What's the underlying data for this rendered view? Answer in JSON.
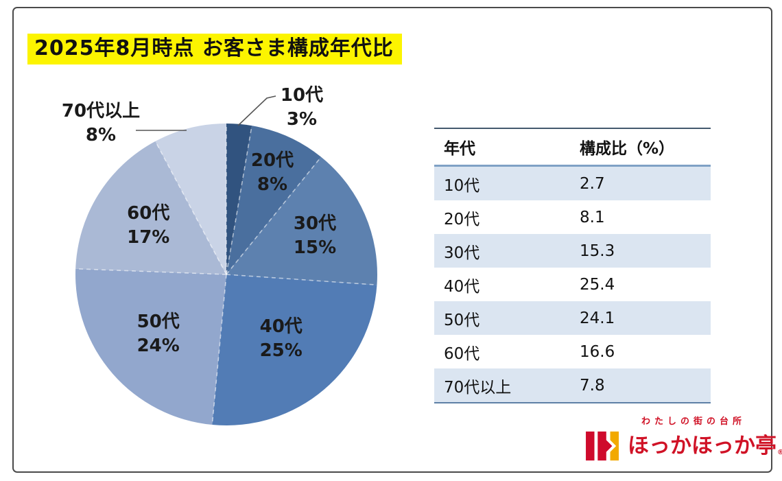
{
  "page": {
    "title": "2025年8月時点 お客さま構成年代比",
    "title_highlight_color": "#fcf400",
    "frame_border_color": "#4a4a4a"
  },
  "chart_data": {
    "type": "pie",
    "title": "2025年8月時点 お客さま構成年代比",
    "unit": "%",
    "slices": [
      {
        "label": "10代",
        "value": 2.7,
        "display_pct": "3%",
        "color": "#31537f",
        "label_placement": "outside"
      },
      {
        "label": "20代",
        "value": 8.1,
        "display_pct": "8%",
        "color": "#4a6f9e",
        "label_placement": "inside"
      },
      {
        "label": "30代",
        "value": 15.3,
        "display_pct": "15%",
        "color": "#5d81af",
        "label_placement": "inside"
      },
      {
        "label": "40代",
        "value": 25.4,
        "display_pct": "25%",
        "color": "#527cb5",
        "label_placement": "inside"
      },
      {
        "label": "50代",
        "value": 24.1,
        "display_pct": "24%",
        "color": "#92a7cd",
        "label_placement": "inside"
      },
      {
        "label": "60代",
        "value": 16.6,
        "display_pct": "17%",
        "color": "#aab9d5",
        "label_placement": "inside"
      },
      {
        "label": "70代以上",
        "value": 7.8,
        "display_pct": "8%",
        "color": "#c9d3e6",
        "label_placement": "outside"
      }
    ],
    "layout": {
      "start_angle_deg": -90,
      "direction": "clockwise",
      "legend": "none",
      "separator_style": "dashed-white"
    }
  },
  "table": {
    "columns": [
      "年代",
      "構成比（%）"
    ],
    "rows": [
      [
        "10代",
        "2.7"
      ],
      [
        "20代",
        "8.1"
      ],
      [
        "30代",
        "15.3"
      ],
      [
        "40代",
        "25.4"
      ],
      [
        "50代",
        "24.1"
      ],
      [
        "60代",
        "16.6"
      ],
      [
        "70代以上",
        "7.8"
      ]
    ],
    "stripe_color": "#dbe5f1"
  },
  "logo": {
    "tagline": "わたしの街の台所",
    "name": "ほっかほっか亭",
    "registered_mark": "®",
    "red": "#d01226",
    "yellow": "#f2a900"
  }
}
